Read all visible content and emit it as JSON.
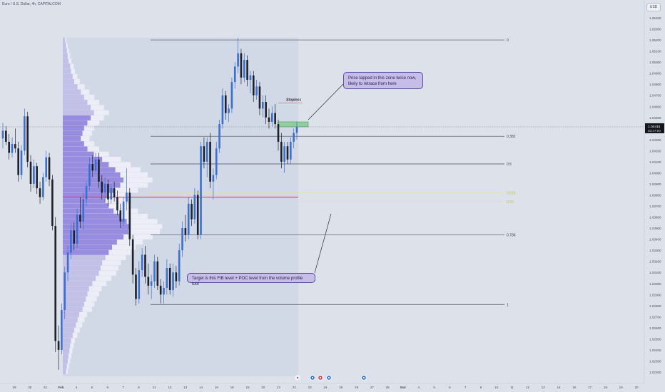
{
  "header": {
    "title": "Euro / U.S. Dollar, 4h, CAPITALCOM",
    "currency": "USD"
  },
  "chart_data": {
    "type": "candlestick",
    "y_ticks": [
      "1.05400",
      "1.05300",
      "1.05200",
      "1.05100",
      "1.05000",
      "1.04900",
      "1.04800",
      "1.04700",
      "1.04600",
      "1.04500",
      "1.04400",
      "1.04300",
      "1.04200",
      "1.04100",
      "1.04000",
      "1.03900",
      "1.03800",
      "1.03700",
      "1.03600",
      "1.03500",
      "1.03400",
      "1.03300",
      "1.03200",
      "1.03100",
      "1.03000",
      "1.02900",
      "1.02800",
      "1.02700",
      "1.02600",
      "1.02500",
      "1.02400",
      "1.02300",
      "1.02200"
    ],
    "x_ticks": [
      "29",
      "30",
      "31",
      "Feb",
      "4",
      "5",
      "6",
      "7",
      "9",
      "11",
      "12",
      "13",
      "14",
      "16",
      "18",
      "19",
      "20",
      "21",
      "22",
      "23",
      "24",
      "25",
      "26",
      "27",
      "28",
      "Mar",
      "4",
      "5",
      "6",
      "7",
      "9",
      "10",
      "11",
      "12",
      "13",
      "14",
      "16",
      "17",
      "18",
      "19",
      "20"
    ],
    "current_price": "1.04415",
    "countdown": "03:47:00",
    "fib_levels": [
      {
        "label": "0",
        "price": 1.052
      },
      {
        "label": "0.382",
        "price": 1.0433
      },
      {
        "label": "0.5",
        "price": 1.0408
      },
      {
        "label": "0.618",
        "price": 1.0382
      },
      {
        "label": "0.65",
        "price": 1.0374
      },
      {
        "label": "0.786",
        "price": 1.0344
      },
      {
        "label": "1",
        "price": 1.0281
      }
    ],
    "poc_price": 1.0378,
    "stoploss_label": "Stoploss",
    "stoploss_price": 1.0463,
    "zone": {
      "low": 1.04415,
      "high": 1.0446
    },
    "candles": [
      {
        "o": 1.0431,
        "h": 1.0445,
        "l": 1.0422,
        "c": 1.0438
      },
      {
        "o": 1.0438,
        "h": 1.0442,
        "l": 1.0425,
        "c": 1.0428
      },
      {
        "o": 1.0428,
        "h": 1.0435,
        "l": 1.0412,
        "c": 1.0418
      },
      {
        "o": 1.0418,
        "h": 1.0432,
        "l": 1.0414,
        "c": 1.0426
      },
      {
        "o": 1.0426,
        "h": 1.044,
        "l": 1.0418,
        "c": 1.0422
      },
      {
        "o": 1.0422,
        "h": 1.0428,
        "l": 1.0392,
        "c": 1.0398
      },
      {
        "o": 1.0398,
        "h": 1.0425,
        "l": 1.0394,
        "c": 1.042
      },
      {
        "o": 1.042,
        "h": 1.0458,
        "l": 1.0416,
        "c": 1.0451
      },
      {
        "o": 1.0451,
        "h": 1.0455,
        "l": 1.0405,
        "c": 1.041
      },
      {
        "o": 1.041,
        "h": 1.0416,
        "l": 1.0383,
        "c": 1.039
      },
      {
        "o": 1.039,
        "h": 1.0412,
        "l": 1.0386,
        "c": 1.0406
      },
      {
        "o": 1.0406,
        "h": 1.0409,
        "l": 1.0381,
        "c": 1.0386
      },
      {
        "o": 1.0386,
        "h": 1.0392,
        "l": 1.0372,
        "c": 1.0378
      },
      {
        "o": 1.0378,
        "h": 1.04,
        "l": 1.0375,
        "c": 1.0396
      },
      {
        "o": 1.0396,
        "h": 1.042,
        "l": 1.0392,
        "c": 1.0414
      },
      {
        "o": 1.0414,
        "h": 1.0418,
        "l": 1.0388,
        "c": 1.0394
      },
      {
        "o": 1.0394,
        "h": 1.0398,
        "l": 1.0348,
        "c": 1.0352
      },
      {
        "o": 1.0352,
        "h": 1.036,
        "l": 1.0238,
        "c": 1.0248
      },
      {
        "o": 1.0248,
        "h": 1.0262,
        "l": 1.0222,
        "c": 1.024
      },
      {
        "o": 1.024,
        "h": 1.0282,
        "l": 1.0236,
        "c": 1.0276
      },
      {
        "o": 1.0276,
        "h": 1.0315,
        "l": 1.0268,
        "c": 1.031
      },
      {
        "o": 1.031,
        "h": 1.0334,
        "l": 1.0302,
        "c": 1.0328
      },
      {
        "o": 1.0328,
        "h": 1.0354,
        "l": 1.0322,
        "c": 1.0348
      },
      {
        "o": 1.0348,
        "h": 1.0355,
        "l": 1.033,
        "c": 1.0336
      },
      {
        "o": 1.0336,
        "h": 1.0368,
        "l": 1.0332,
        "c": 1.0362
      },
      {
        "o": 1.0362,
        "h": 1.0378,
        "l": 1.035,
        "c": 1.0356
      },
      {
        "o": 1.0356,
        "h": 1.0382,
        "l": 1.0348,
        "c": 1.0376
      },
      {
        "o": 1.0376,
        "h": 1.0392,
        "l": 1.037,
        "c": 1.0388
      },
      {
        "o": 1.0388,
        "h": 1.0414,
        "l": 1.0384,
        "c": 1.0408
      },
      {
        "o": 1.0408,
        "h": 1.0416,
        "l": 1.0396,
        "c": 1.0402
      },
      {
        "o": 1.0402,
        "h": 1.0418,
        "l": 1.0398,
        "c": 1.0412
      },
      {
        "o": 1.0412,
        "h": 1.0418,
        "l": 1.0386,
        "c": 1.0392
      },
      {
        "o": 1.0392,
        "h": 1.0398,
        "l": 1.0376,
        "c": 1.0382
      },
      {
        "o": 1.0382,
        "h": 1.0396,
        "l": 1.0374,
        "c": 1.039
      },
      {
        "o": 1.039,
        "h": 1.0394,
        "l": 1.037,
        "c": 1.0376
      },
      {
        "o": 1.0376,
        "h": 1.039,
        "l": 1.0372,
        "c": 1.0386
      },
      {
        "o": 1.0386,
        "h": 1.0392,
        "l": 1.0374,
        "c": 1.0378
      },
      {
        "o": 1.0378,
        "h": 1.0384,
        "l": 1.0362,
        "c": 1.0366
      },
      {
        "o": 1.0366,
        "h": 1.0372,
        "l": 1.035,
        "c": 1.0356
      },
      {
        "o": 1.0356,
        "h": 1.0378,
        "l": 1.0352,
        "c": 1.0374
      },
      {
        "o": 1.0374,
        "h": 1.0404,
        "l": 1.0366,
        "c": 1.0382
      },
      {
        "o": 1.0382,
        "h": 1.0386,
        "l": 1.0334,
        "c": 1.034
      },
      {
        "o": 1.034,
        "h": 1.0344,
        "l": 1.03,
        "c": 1.0308
      },
      {
        "o": 1.0308,
        "h": 1.0314,
        "l": 1.028,
        "c": 1.0286
      },
      {
        "o": 1.0286,
        "h": 1.032,
        "l": 1.0282,
        "c": 1.0312
      },
      {
        "o": 1.0312,
        "h": 1.0332,
        "l": 1.0306,
        "c": 1.0326
      },
      {
        "o": 1.0326,
        "h": 1.0334,
        "l": 1.03,
        "c": 1.0306
      },
      {
        "o": 1.0306,
        "h": 1.0318,
        "l": 1.029,
        "c": 1.0298
      },
      {
        "o": 1.0298,
        "h": 1.0308,
        "l": 1.0286,
        "c": 1.0302
      },
      {
        "o": 1.0302,
        "h": 1.0326,
        "l": 1.0296,
        "c": 1.032
      },
      {
        "o": 1.032,
        "h": 1.0324,
        "l": 1.0294,
        "c": 1.0298
      },
      {
        "o": 1.0298,
        "h": 1.0304,
        "l": 1.0282,
        "c": 1.029
      },
      {
        "o": 1.029,
        "h": 1.0302,
        "l": 1.0282,
        "c": 1.0296
      },
      {
        "o": 1.0296,
        "h": 1.0322,
        "l": 1.029,
        "c": 1.0314
      },
      {
        "o": 1.0314,
        "h": 1.0318,
        "l": 1.029,
        "c": 1.0294
      },
      {
        "o": 1.0294,
        "h": 1.0318,
        "l": 1.0288,
        "c": 1.031
      },
      {
        "o": 1.031,
        "h": 1.0316,
        "l": 1.0296,
        "c": 1.0302
      },
      {
        "o": 1.0302,
        "h": 1.0336,
        "l": 1.0298,
        "c": 1.033
      },
      {
        "o": 1.033,
        "h": 1.0356,
        "l": 1.0324,
        "c": 1.035
      },
      {
        "o": 1.035,
        "h": 1.0362,
        "l": 1.0338,
        "c": 1.0344
      },
      {
        "o": 1.0344,
        "h": 1.0378,
        "l": 1.034,
        "c": 1.0372
      },
      {
        "o": 1.0372,
        "h": 1.0376,
        "l": 1.0352,
        "c": 1.0358
      },
      {
        "o": 1.0358,
        "h": 1.0386,
        "l": 1.0354,
        "c": 1.038
      },
      {
        "o": 1.038,
        "h": 1.0384,
        "l": 1.034,
        "c": 1.0344
      },
      {
        "o": 1.0344,
        "h": 1.0428,
        "l": 1.034,
        "c": 1.0424
      },
      {
        "o": 1.0424,
        "h": 1.0432,
        "l": 1.0404,
        "c": 1.041
      },
      {
        "o": 1.041,
        "h": 1.0432,
        "l": 1.0396,
        "c": 1.0428
      },
      {
        "o": 1.0428,
        "h": 1.0436,
        "l": 1.0386,
        "c": 1.0392
      },
      {
        "o": 1.0392,
        "h": 1.0404,
        "l": 1.0376,
        "c": 1.0398
      },
      {
        "o": 1.0398,
        "h": 1.0428,
        "l": 1.0394,
        "c": 1.0422
      },
      {
        "o": 1.0422,
        "h": 1.0448,
        "l": 1.0418,
        "c": 1.0444
      },
      {
        "o": 1.0444,
        "h": 1.0476,
        "l": 1.044,
        "c": 1.047
      },
      {
        "o": 1.047,
        "h": 1.0474,
        "l": 1.0448,
        "c": 1.0454
      },
      {
        "o": 1.0454,
        "h": 1.0462,
        "l": 1.0446,
        "c": 1.0458
      },
      {
        "o": 1.0458,
        "h": 1.0486,
        "l": 1.0454,
        "c": 1.0482
      },
      {
        "o": 1.0482,
        "h": 1.05,
        "l": 1.0476,
        "c": 1.0496
      },
      {
        "o": 1.0496,
        "h": 1.0522,
        "l": 1.049,
        "c": 1.0508
      },
      {
        "o": 1.0508,
        "h": 1.0512,
        "l": 1.048,
        "c": 1.0486
      },
      {
        "o": 1.0486,
        "h": 1.0508,
        "l": 1.0482,
        "c": 1.0502
      },
      {
        "o": 1.0502,
        "h": 1.0506,
        "l": 1.0478,
        "c": 1.0484
      },
      {
        "o": 1.0484,
        "h": 1.0492,
        "l": 1.0472,
        "c": 1.0488
      },
      {
        "o": 1.0488,
        "h": 1.0492,
        "l": 1.0464,
        "c": 1.047
      },
      {
        "o": 1.047,
        "h": 1.0484,
        "l": 1.0466,
        "c": 1.0478
      },
      {
        "o": 1.0478,
        "h": 1.0482,
        "l": 1.0452,
        "c": 1.0458
      },
      {
        "o": 1.0458,
        "h": 1.047,
        "l": 1.045,
        "c": 1.0464
      },
      {
        "o": 1.0464,
        "h": 1.047,
        "l": 1.0444,
        "c": 1.045
      },
      {
        "o": 1.045,
        "h": 1.0458,
        "l": 1.044,
        "c": 1.0446
      },
      {
        "o": 1.0446,
        "h": 1.046,
        "l": 1.0442,
        "c": 1.0454
      },
      {
        "o": 1.0454,
        "h": 1.0462,
        "l": 1.044,
        "c": 1.0444
      },
      {
        "o": 1.0444,
        "h": 1.0448,
        "l": 1.042,
        "c": 1.0428
      },
      {
        "o": 1.0428,
        "h": 1.0436,
        "l": 1.0404,
        "c": 1.041
      },
      {
        "o": 1.041,
        "h": 1.0428,
        "l": 1.04,
        "c": 1.0424
      },
      {
        "o": 1.0424,
        "h": 1.0428,
        "l": 1.0408,
        "c": 1.0412
      },
      {
        "o": 1.0412,
        "h": 1.0432,
        "l": 1.0408,
        "c": 1.0428
      },
      {
        "o": 1.0428,
        "h": 1.044,
        "l": 1.0422,
        "c": 1.0436
      },
      {
        "o": 1.0436,
        "h": 1.0446,
        "l": 1.043,
        "c": 1.04415
      }
    ],
    "volume_profile": [
      3,
      4,
      5,
      6,
      7,
      9,
      10,
      12,
      14,
      18,
      22,
      26,
      30,
      34,
      38,
      34,
      30,
      26,
      24,
      22,
      26,
      30,
      38,
      48,
      56,
      64,
      70,
      74,
      70,
      62,
      56,
      52,
      56,
      62,
      70,
      78,
      82,
      80,
      74,
      66,
      60,
      56,
      52,
      48,
      46,
      44,
      40,
      36,
      32,
      30,
      28,
      26,
      24,
      20,
      18,
      16,
      14,
      12,
      10,
      9,
      8,
      7,
      6,
      5,
      4
    ]
  },
  "annotations": {
    "top_note": "Price tapped in this zone twice now,\nlikely to retrace from here",
    "bottom_note": "Target is this FIB level + POC level from the volume profile tool"
  },
  "colors": {
    "bull": "#3a6fcf",
    "bear": "#1e2129",
    "poc": "#e0323a",
    "fib": "#4a4e58",
    "zone": "#8fcf9c",
    "profile": "#8e7fde",
    "profile_light": "#eef0f8",
    "note_fill": "#c6bde8"
  }
}
